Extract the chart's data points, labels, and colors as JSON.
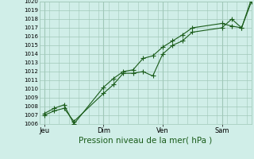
{
  "background_color": "#d0eee8",
  "plot_bg_color": "#d0eee8",
  "grid_color": "#a0c8b8",
  "line_color": "#1a5c1a",
  "xlabel": "Pression niveau de la mer( hPa )",
  "ylim": [
    1006,
    1020
  ],
  "yticks": [
    1006,
    1007,
    1008,
    1009,
    1010,
    1011,
    1012,
    1013,
    1014,
    1015,
    1016,
    1017,
    1018,
    1019,
    1020
  ],
  "xtick_labels": [
    "Jeu",
    "Dim",
    "Ven",
    "Sam"
  ],
  "xtick_positions": [
    0,
    36,
    72,
    108
  ],
  "vlines": [
    0,
    36,
    72,
    108
  ],
  "series1_x": [
    0,
    6,
    12,
    18,
    36,
    42,
    48,
    54,
    60,
    66,
    72,
    78,
    84,
    90,
    108,
    114,
    120,
    126
  ],
  "series1_y": [
    1007.0,
    1007.5,
    1007.8,
    1006.3,
    1009.5,
    1010.5,
    1011.8,
    1011.8,
    1012.0,
    1011.5,
    1014.0,
    1015.0,
    1015.5,
    1016.5,
    1017.0,
    1018.0,
    1017.0,
    1020.0
  ],
  "series2_x": [
    0,
    6,
    12,
    18,
    36,
    42,
    48,
    54,
    60,
    66,
    72,
    78,
    84,
    90,
    108,
    114,
    120,
    126
  ],
  "series2_y": [
    1007.2,
    1007.8,
    1008.2,
    1006.0,
    1010.2,
    1011.2,
    1012.0,
    1012.2,
    1013.5,
    1013.8,
    1014.8,
    1015.5,
    1016.2,
    1017.0,
    1017.5,
    1017.2,
    1017.0,
    1020.3
  ],
  "marker_size": 2.5,
  "linewidth": 0.8,
  "xlabel_fontsize": 7.5,
  "ytick_fontsize": 5,
  "xtick_fontsize": 6
}
